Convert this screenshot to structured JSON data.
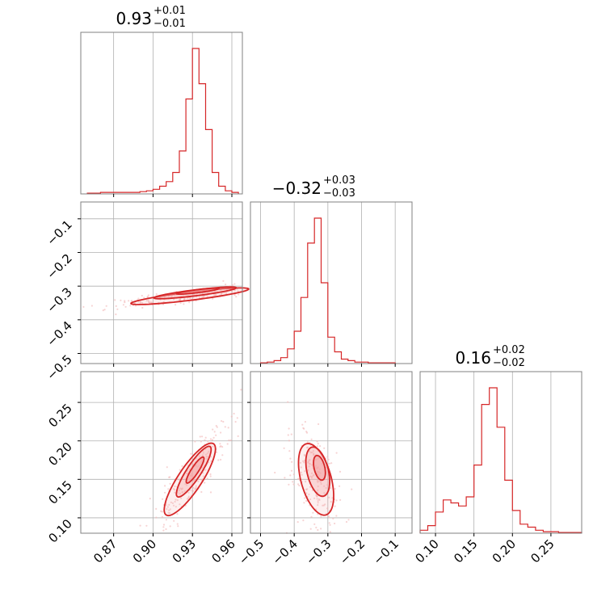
{
  "chart_data": {
    "type": "corner",
    "colors": {
      "main": "#d62728",
      "fill": "#f4a6a6",
      "points": "#f2b8b8"
    },
    "grid": true,
    "params": [
      {
        "title_value": "0.93",
        "title_plus": "+0.01",
        "title_minus": "−0.01",
        "range": [
          0.845,
          0.968
        ],
        "ticks": [
          0.87,
          0.9,
          0.93,
          0.96
        ],
        "tick_labels": [
          "0.87",
          "0.90",
          "0.93",
          "0.96"
        ],
        "median": 0.93,
        "sigma": 0.008
      },
      {
        "title_value": "−0.32",
        "title_plus": "+0.03",
        "title_minus": "−0.03",
        "range": [
          -0.53,
          -0.05
        ],
        "ticks": [
          -0.5,
          -0.4,
          -0.3,
          -0.2,
          -0.1
        ],
        "tick_labels": [
          "−0.5",
          "−0.4",
          "−0.3",
          "−0.2",
          "−0.1"
        ],
        "median": -0.32,
        "sigma": 0.03
      },
      {
        "title_value": "0.16",
        "title_plus": "+0.02",
        "title_minus": "−0.02",
        "range": [
          0.08,
          0.29
        ],
        "ticks": [
          0.1,
          0.15,
          0.2,
          0.25
        ],
        "tick_labels": [
          "0.10",
          "0.15",
          "0.20",
          "0.25"
        ],
        "median": 0.16,
        "sigma": 0.02
      }
    ],
    "histograms": [
      {
        "param": 0,
        "bin_edges": [
          0.85,
          0.855,
          0.86,
          0.865,
          0.87,
          0.875,
          0.88,
          0.885,
          0.89,
          0.895,
          0.9,
          0.905,
          0.91,
          0.915,
          0.92,
          0.925,
          0.93,
          0.935,
          0.94,
          0.945,
          0.95,
          0.955,
          0.96,
          0.965
        ],
        "counts": [
          0.5,
          0.5,
          1,
          1,
          1,
          1,
          1,
          1,
          1.5,
          2,
          3,
          5,
          8,
          14,
          28,
          62,
          95,
          72,
          42,
          14,
          5,
          2,
          1
        ]
      },
      {
        "param": 1,
        "bin_edges": [
          -0.5,
          -0.48,
          -0.46,
          -0.44,
          -0.42,
          -0.4,
          -0.38,
          -0.36,
          -0.34,
          -0.32,
          -0.3,
          -0.28,
          -0.26,
          -0.24,
          -0.22,
          -0.2,
          -0.18,
          -0.16,
          -0.14,
          -0.12,
          -0.1
        ],
        "counts": [
          0.5,
          1,
          2,
          4,
          10,
          22,
          45,
          82,
          99,
          55,
          18,
          8,
          3,
          2,
          1,
          1,
          0.5,
          0.5,
          0.5,
          0.5
        ]
      },
      {
        "param": 2,
        "bin_edges": [
          0.08,
          0.09,
          0.1,
          0.11,
          0.12,
          0.13,
          0.14,
          0.15,
          0.16,
          0.17,
          0.18,
          0.19,
          0.2,
          0.21,
          0.22,
          0.23,
          0.24,
          0.25,
          0.26,
          0.27,
          0.28,
          0.29
        ],
        "counts": [
          2,
          5,
          14,
          22,
          20,
          18,
          24,
          45,
          85,
          96,
          70,
          35,
          15,
          6,
          4,
          2,
          1,
          1,
          0.5,
          0.5,
          0.5
        ]
      }
    ],
    "pairs": [
      {
        "x_param": 0,
        "y_param": 1,
        "ellipses": [
          {
            "cx": 0.934,
            "cy": -0.315,
            "rx": 0.004,
            "ry": 0.018,
            "angle": -63
          },
          {
            "cx": 0.932,
            "cy": -0.32,
            "rx": 0.008,
            "ry": 0.035,
            "angle": -63
          },
          {
            "cx": 0.928,
            "cy": -0.33,
            "rx": 0.011,
            "ry": 0.05,
            "angle": -63
          }
        ]
      },
      {
        "x_param": 0,
        "y_param": 2,
        "ellipses": [
          {
            "cx": 0.932,
            "cy": 0.162,
            "rx": 0.003,
            "ry": 0.018,
            "angle": -20
          },
          {
            "cx": 0.931,
            "cy": 0.16,
            "rx": 0.006,
            "ry": 0.035,
            "angle": -20
          },
          {
            "cx": 0.928,
            "cy": 0.15,
            "rx": 0.01,
            "ry": 0.05,
            "angle": -20
          }
        ]
      },
      {
        "x_param": 1,
        "y_param": 2,
        "ellipses": [
          {
            "cx": -0.325,
            "cy": 0.165,
            "rx": 0.02,
            "ry": 0.013,
            "angle": -38
          },
          {
            "cx": -0.33,
            "cy": 0.16,
            "rx": 0.04,
            "ry": 0.026,
            "angle": -38
          },
          {
            "cx": -0.335,
            "cy": 0.15,
            "rx": 0.06,
            "ry": 0.036,
            "angle": -38
          }
        ]
      }
    ]
  }
}
